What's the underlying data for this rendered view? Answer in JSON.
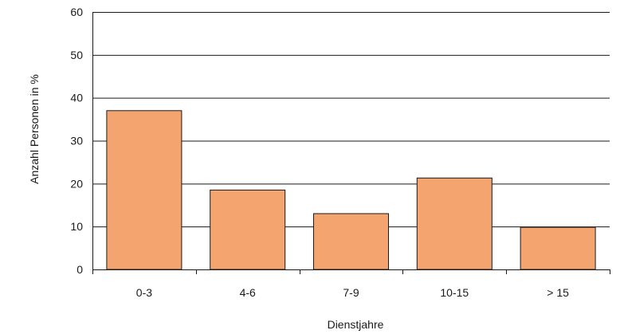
{
  "chart_data": {
    "type": "bar",
    "title": "",
    "xlabel": "Dienstjahre",
    "ylabel": "Anzahl Personen in %",
    "categories": [
      "0-3",
      "4-6",
      "7-9",
      "10-15",
      "> 15"
    ],
    "values": [
      37,
      18.5,
      13,
      21.3,
      9.8
    ],
    "yticks": [
      "0",
      "10",
      "20",
      "30",
      "40",
      "50",
      "60"
    ],
    "ylim": [
      0,
      60
    ],
    "grid": "horizontal",
    "bar_color": "#f4a46f",
    "legend": "none"
  }
}
